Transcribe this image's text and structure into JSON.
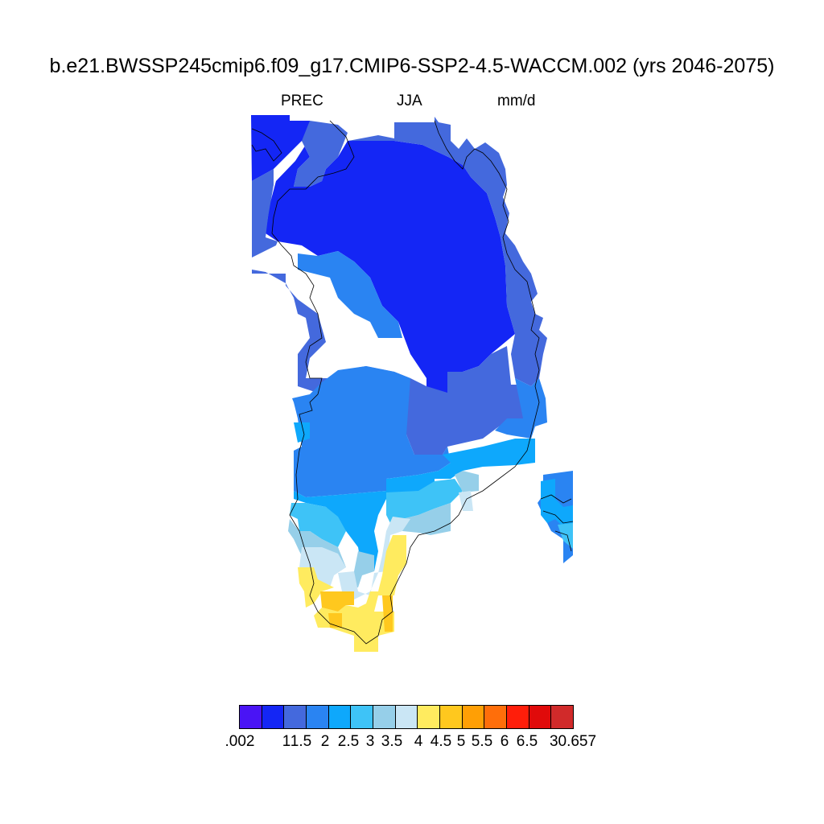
{
  "title": "b.e21.BWSSP245cmip6.f09_g17.CMIP6-SSP2-4.5-WACCM.002 (yrs 2046-2075)",
  "subtitle": {
    "variable": "PREC",
    "season": "JJA",
    "units": "mm/d"
  },
  "colorbar": {
    "colors": [
      "#4a14f5",
      "#1426f5",
      "#4469dd",
      "#2a84f2",
      "#0ea8fc",
      "#3ec3f7",
      "#96cfe9",
      "#cae6f5",
      "#ffeb5f",
      "#ffc81e",
      "#ff9f05",
      "#ff6e0a",
      "#ff1e0a",
      "#e00a0a",
      "#d12a2a"
    ],
    "labels": [
      ".002",
      "1",
      "1.5",
      "2",
      "2.5",
      "3",
      "3.5",
      "4",
      "4.5",
      "5",
      "5.5",
      "6",
      "6.5",
      "30.657"
    ]
  }
}
